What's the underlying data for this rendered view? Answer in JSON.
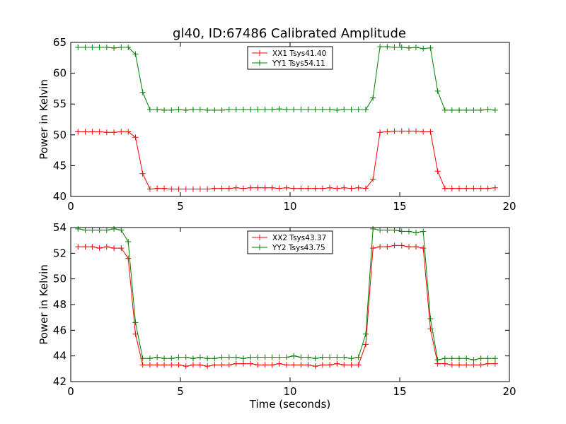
{
  "figure": {
    "title": "gl40, ID:67486 Calibrated Amplitude"
  },
  "chart_data": [
    {
      "type": "line",
      "title": "gl40, ID:67486 Calibrated Amplitude",
      "xlabel": "",
      "ylabel": "Power in Kelvin",
      "xlim": [
        0,
        20
      ],
      "ylim": [
        40,
        65
      ],
      "xticks": [
        0,
        5,
        10,
        15,
        20
      ],
      "yticks": [
        40,
        45,
        50,
        55,
        60,
        65
      ],
      "grid": false,
      "legend_position": "top-center",
      "x": [
        0.33,
        0.66,
        0.98,
        1.31,
        1.64,
        1.97,
        2.3,
        2.62,
        2.95,
        3.28,
        3.61,
        3.94,
        4.26,
        4.59,
        4.92,
        5.25,
        5.58,
        5.9,
        6.23,
        6.56,
        6.89,
        7.22,
        7.54,
        7.87,
        8.2,
        8.53,
        8.86,
        9.18,
        9.51,
        9.84,
        10.17,
        10.5,
        10.82,
        11.15,
        11.48,
        11.81,
        12.14,
        12.46,
        12.79,
        13.12,
        13.45,
        13.78,
        14.1,
        14.43,
        14.76,
        15.09,
        15.42,
        15.74,
        16.07,
        16.4,
        16.73,
        17.06,
        17.38,
        17.71,
        18.04,
        18.37,
        18.7,
        19.02,
        19.35
      ],
      "series": [
        {
          "name": "XX1 Tsys41.40",
          "color": "#ff0000",
          "values": [
            50.5,
            50.5,
            50.5,
            50.5,
            50.4,
            50.4,
            50.5,
            50.5,
            49.6,
            43.7,
            41.2,
            41.3,
            41.3,
            41.2,
            41.2,
            41.2,
            41.2,
            41.2,
            41.2,
            41.3,
            41.3,
            41.3,
            41.4,
            41.3,
            41.4,
            41.4,
            41.4,
            41.4,
            41.3,
            41.4,
            41.3,
            41.3,
            41.3,
            41.3,
            41.3,
            41.4,
            41.3,
            41.4,
            41.3,
            41.4,
            41.3,
            42.8,
            50.4,
            50.5,
            50.6,
            50.6,
            50.6,
            50.6,
            50.5,
            50.5,
            44.1,
            41.3,
            41.3,
            41.3,
            41.3,
            41.3,
            41.3,
            41.3,
            41.4
          ]
        },
        {
          "name": "YY1 Tsys54.11",
          "color": "#008000",
          "values": [
            64.2,
            64.2,
            64.2,
            64.2,
            64.2,
            64.1,
            64.2,
            64.2,
            63.1,
            56.9,
            54.1,
            54.1,
            54.0,
            54.0,
            54.1,
            54.0,
            54.1,
            54.1,
            54.0,
            54.0,
            54.0,
            54.1,
            54.1,
            54.1,
            54.1,
            54.1,
            54.1,
            54.1,
            54.2,
            54.1,
            54.1,
            54.1,
            54.1,
            54.1,
            54.1,
            54.1,
            54.0,
            54.1,
            54.1,
            54.1,
            54.1,
            56.0,
            64.3,
            64.3,
            64.2,
            64.2,
            64.1,
            64.2,
            64.0,
            64.1,
            57.1,
            54.0,
            54.0,
            54.0,
            54.0,
            54.0,
            54.0,
            54.1,
            54.0
          ]
        }
      ]
    },
    {
      "type": "line",
      "title": "",
      "xlabel": "Time (seconds)",
      "ylabel": "Power in Kelvin",
      "xlim": [
        0,
        20
      ],
      "ylim": [
        42,
        54
      ],
      "xticks": [
        0,
        5,
        10,
        15,
        20
      ],
      "yticks": [
        42,
        44,
        46,
        48,
        50,
        52,
        54
      ],
      "grid": false,
      "legend_position": "top-center",
      "x": [
        0.33,
        0.66,
        0.98,
        1.31,
        1.64,
        1.97,
        2.3,
        2.62,
        2.95,
        3.28,
        3.61,
        3.94,
        4.26,
        4.59,
        4.92,
        5.25,
        5.58,
        5.9,
        6.23,
        6.56,
        6.89,
        7.22,
        7.54,
        7.87,
        8.2,
        8.53,
        8.86,
        9.18,
        9.51,
        9.84,
        10.17,
        10.5,
        10.82,
        11.15,
        11.48,
        11.81,
        12.14,
        12.46,
        12.79,
        13.12,
        13.45,
        13.78,
        14.1,
        14.43,
        14.76,
        15.09,
        15.42,
        15.74,
        16.07,
        16.4,
        16.73,
        17.06,
        17.38,
        17.71,
        18.04,
        18.37,
        18.7,
        19.02,
        19.35
      ],
      "series": [
        {
          "name": "XX2 Tsys43.37",
          "color": "#ff0000",
          "values": [
            52.5,
            52.5,
            52.5,
            52.4,
            52.5,
            52.4,
            52.4,
            51.6,
            45.7,
            43.3,
            43.3,
            43.3,
            43.3,
            43.3,
            43.3,
            43.2,
            43.3,
            43.3,
            43.2,
            43.3,
            43.3,
            43.3,
            43.4,
            43.4,
            43.4,
            43.3,
            43.3,
            43.3,
            43.4,
            43.3,
            43.3,
            43.3,
            43.3,
            43.2,
            43.3,
            43.3,
            43.4,
            43.3,
            43.3,
            43.3,
            44.9,
            52.4,
            52.5,
            52.5,
            52.6,
            52.6,
            52.5,
            52.5,
            52.4,
            46.1,
            43.4,
            43.4,
            43.3,
            43.3,
            43.3,
            43.3,
            43.3,
            43.4,
            43.4
          ]
        },
        {
          "name": "YY2 Tsys43.75",
          "color": "#008000",
          "values": [
            53.9,
            53.8,
            53.8,
            53.8,
            53.8,
            53.9,
            53.8,
            52.9,
            46.6,
            43.8,
            43.8,
            43.9,
            43.8,
            43.8,
            43.9,
            43.9,
            43.8,
            43.9,
            43.8,
            43.8,
            43.9,
            43.9,
            43.9,
            43.8,
            43.9,
            43.9,
            43.9,
            43.9,
            43.9,
            43.9,
            44.0,
            43.9,
            43.9,
            43.8,
            43.9,
            43.9,
            43.9,
            43.9,
            43.8,
            43.9,
            45.7,
            53.9,
            53.8,
            53.8,
            53.8,
            53.7,
            53.7,
            53.6,
            53.7,
            46.9,
            43.7,
            43.8,
            43.8,
            43.8,
            43.8,
            43.7,
            43.8,
            43.8,
            43.8
          ]
        }
      ]
    }
  ]
}
